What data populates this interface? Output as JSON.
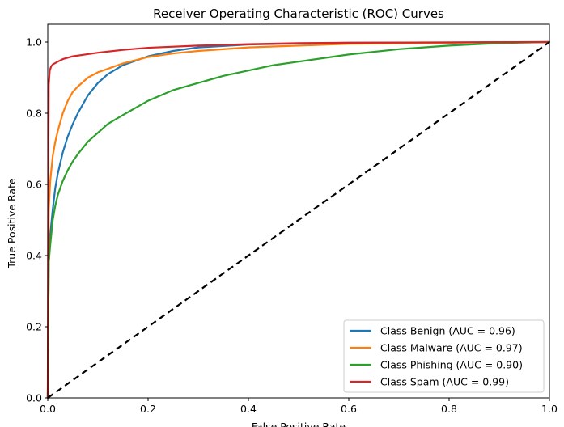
{
  "chart_data": {
    "type": "line",
    "title": "Receiver Operating Characteristic (ROC) Curves",
    "xlabel": "False Positive Rate",
    "ylabel": "True Positive Rate",
    "xlim": [
      0.0,
      1.0
    ],
    "ylim": [
      0.0,
      1.05
    ],
    "xticks": [
      "0.0",
      "0.2",
      "0.4",
      "0.6",
      "0.8",
      "1.0"
    ],
    "yticks": [
      "0.0",
      "0.2",
      "0.4",
      "0.6",
      "0.8",
      "1.0"
    ],
    "grid": false,
    "legend_position": "bottom-right",
    "series": [
      {
        "name": "Class Benign (AUC = 0.96)",
        "color": "#1f77b4",
        "x": [
          0.0,
          0.002,
          0.005,
          0.01,
          0.015,
          0.02,
          0.03,
          0.04,
          0.05,
          0.06,
          0.08,
          0.1,
          0.12,
          0.15,
          0.2,
          0.25,
          0.3,
          0.4,
          0.5,
          0.6,
          0.8,
          1.0
        ],
        "y": [
          0.0,
          0.38,
          0.46,
          0.53,
          0.59,
          0.63,
          0.69,
          0.735,
          0.77,
          0.8,
          0.85,
          0.885,
          0.91,
          0.935,
          0.96,
          0.975,
          0.985,
          0.993,
          0.996,
          0.998,
          0.999,
          1.0
        ]
      },
      {
        "name": "Class Malware (AUC = 0.97)",
        "color": "#ff7f0e",
        "x": [
          0.0,
          0.002,
          0.005,
          0.01,
          0.015,
          0.02,
          0.03,
          0.04,
          0.05,
          0.06,
          0.08,
          0.1,
          0.12,
          0.15,
          0.2,
          0.25,
          0.3,
          0.4,
          0.5,
          0.6,
          0.8,
          1.0
        ],
        "y": [
          0.0,
          0.53,
          0.61,
          0.68,
          0.72,
          0.75,
          0.8,
          0.835,
          0.86,
          0.875,
          0.9,
          0.915,
          0.925,
          0.94,
          0.958,
          0.968,
          0.975,
          0.985,
          0.99,
          0.995,
          0.998,
          1.0
        ]
      },
      {
        "name": "Class Phishing (AUC = 0.90)",
        "color": "#2ca02c",
        "x": [
          0.0,
          0.002,
          0.005,
          0.01,
          0.015,
          0.02,
          0.03,
          0.04,
          0.05,
          0.06,
          0.08,
          0.1,
          0.12,
          0.15,
          0.2,
          0.25,
          0.3,
          0.35,
          0.4,
          0.45,
          0.5,
          0.6,
          0.7,
          0.8,
          0.9,
          1.0
        ],
        "y": [
          0.0,
          0.38,
          0.43,
          0.5,
          0.54,
          0.57,
          0.61,
          0.64,
          0.665,
          0.685,
          0.72,
          0.745,
          0.77,
          0.795,
          0.835,
          0.865,
          0.885,
          0.905,
          0.92,
          0.935,
          0.945,
          0.965,
          0.98,
          0.99,
          0.997,
          1.0
        ]
      },
      {
        "name": "Class Spam (AUC = 0.99)",
        "color": "#d62728",
        "x": [
          0.0,
          0.001,
          0.002,
          0.004,
          0.007,
          0.01,
          0.02,
          0.03,
          0.05,
          0.08,
          0.1,
          0.15,
          0.2,
          0.3,
          0.4,
          0.5,
          0.6,
          0.8,
          1.0
        ],
        "y": [
          0.0,
          0.6,
          0.88,
          0.92,
          0.932,
          0.937,
          0.945,
          0.952,
          0.96,
          0.966,
          0.97,
          0.978,
          0.984,
          0.99,
          0.994,
          0.997,
          0.998,
          0.999,
          1.0
        ]
      }
    ],
    "reference_line": {
      "style": "dashed",
      "color": "#000000",
      "x": [
        0.0,
        1.0
      ],
      "y": [
        0.0,
        1.0
      ]
    }
  }
}
